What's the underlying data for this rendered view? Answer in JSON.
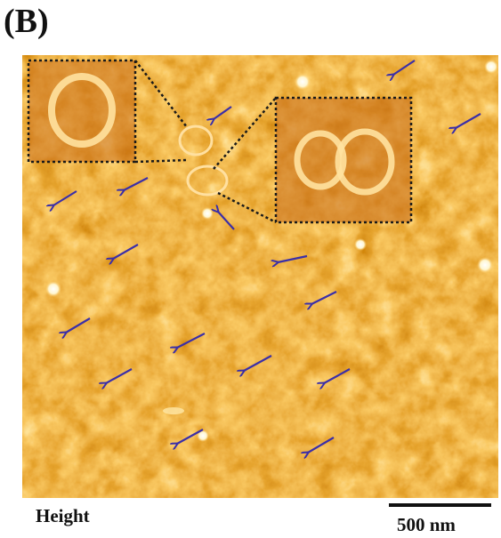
{
  "panel_label": "(B)",
  "channel_label": "Height",
  "scale_bar": {
    "label": "500 nm"
  }
}
